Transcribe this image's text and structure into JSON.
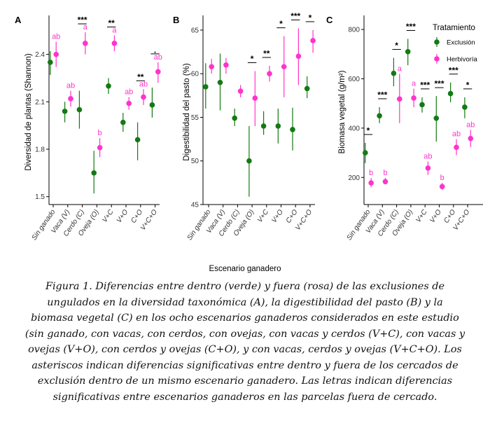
{
  "figure": {
    "shared_xlabel": "Escenario ganadero",
    "colors": {
      "exclusion": "#137a13",
      "herbivoria": "#ff33cc",
      "axis": "#000000"
    }
  },
  "chart_data": [
    {
      "type": "scatter",
      "panel_label": "A",
      "title": "",
      "ylabel": "Diversidad de plantas (Shannon)",
      "ylim": [
        1.45,
        2.62
      ],
      "yticks": [
        1.5,
        1.8,
        2.1,
        2.4
      ],
      "ytick_labels": [
        "1.5",
        "1.8",
        "2.1",
        "2.4"
      ],
      "categories": [
        "Sin ganado",
        "Vaca (V)",
        "Cerdo (C)",
        "Oveja (O)",
        "V+C",
        "V+O",
        "C+O",
        "V+C+O"
      ],
      "series": [
        {
          "name": "Exclusión",
          "color": "#137a13",
          "values": [
            2.35,
            2.04,
            2.05,
            1.65,
            2.2,
            1.97,
            1.86,
            2.08
          ],
          "err_low": [
            2.27,
            1.97,
            1.93,
            1.52,
            2.15,
            1.91,
            1.73,
            2.0
          ],
          "err_high": [
            2.42,
            2.1,
            2.17,
            1.79,
            2.25,
            2.03,
            1.97,
            2.19
          ]
        },
        {
          "name": "Herbivoría",
          "color": "#ff33cc",
          "values": [
            2.4,
            2.12,
            2.47,
            1.81,
            2.47,
            2.09,
            2.13,
            2.29
          ],
          "err_low": [
            2.32,
            2.07,
            2.4,
            1.75,
            2.42,
            2.05,
            2.08,
            2.22
          ],
          "err_high": [
            2.48,
            2.17,
            2.54,
            1.87,
            2.52,
            2.13,
            2.18,
            2.35
          ]
        }
      ],
      "letters": [
        "ab",
        "ab",
        "a",
        "b",
        "a",
        "ab",
        "ab",
        "ab"
      ],
      "significance": [
        "",
        "",
        "***",
        "",
        "**",
        "",
        "**",
        "."
      ]
    },
    {
      "type": "scatter",
      "panel_label": "B",
      "title": "",
      "ylabel": "Digestibilidad del pasto (%)",
      "ylim": [
        45,
        66.2
      ],
      "yticks": [
        45,
        50,
        55,
        60,
        65
      ],
      "ytick_labels": [
        "45",
        "50",
        "55",
        "60",
        "65"
      ],
      "categories": [
        "Sin ganado",
        "Vaca (V)",
        "Cerdo (C)",
        "Oveja (O)",
        "V+C",
        "V+O",
        "C+O",
        "V+C+O"
      ],
      "series": [
        {
          "name": "Exclusión",
          "color": "#137a13",
          "values": [
            58.5,
            59.0,
            54.9,
            50.0,
            54.0,
            54.0,
            53.6,
            58.3
          ],
          "err_low": [
            56.0,
            55.8,
            54.0,
            45.9,
            53.0,
            52.0,
            51.2,
            57.2
          ],
          "err_high": [
            61.2,
            62.3,
            56.0,
            54.0,
            55.7,
            56.0,
            56.1,
            59.7
          ]
        },
        {
          "name": "Herbivoría",
          "color": "#ff33cc",
          "values": [
            60.8,
            61.0,
            58.0,
            57.2,
            60.0,
            60.8,
            62.0,
            63.8
          ],
          "err_low": [
            60.0,
            60.0,
            57.3,
            54.0,
            59.1,
            57.3,
            58.7,
            62.4
          ],
          "err_high": [
            61.7,
            61.8,
            58.7,
            60.3,
            60.9,
            64.3,
            65.2,
            65.0
          ]
        }
      ],
      "letters": [],
      "significance": [
        "",
        "",
        "",
        "*",
        "**",
        "*",
        "***",
        "*"
      ]
    },
    {
      "type": "scatter",
      "panel_label": "C",
      "title": "",
      "ylabel": "Biomasa vegetal (g/m²)",
      "ylim": [
        90,
        840
      ],
      "yticks": [
        200,
        400,
        600,
        800
      ],
      "ytick_labels": [
        "200",
        "400",
        "600",
        "800"
      ],
      "categories": [
        "Sin ganado",
        "Vaca (V)",
        "Cerdo (C)",
        "Oveja (O)",
        "V+C",
        "V+O",
        "C+O",
        "V+C+O"
      ],
      "legend_title": "Tratamiento",
      "legend_position": "top-right",
      "series": [
        {
          "name": "Exclusión",
          "color": "#137a13",
          "values": [
            300,
            450,
            622,
            710,
            495,
            440,
            540,
            485
          ],
          "err_low": [
            258,
            420,
            570,
            655,
            463,
            345,
            505,
            440
          ],
          "err_high": [
            340,
            485,
            685,
            762,
            525,
            530,
            585,
            525
          ]
        },
        {
          "name": "Herbivoría",
          "color": "#ff33cc",
          "values": [
            178,
            183,
            518,
            522,
            238,
            163,
            322,
            358
          ],
          "err_low": [
            160,
            172,
            420,
            485,
            210,
            150,
            290,
            323
          ],
          "err_high": [
            198,
            198,
            620,
            560,
            265,
            178,
            355,
            393
          ]
        }
      ],
      "letters": [
        "b",
        "b",
        "a",
        "a",
        "ab",
        "b",
        "ab",
        "ab"
      ],
      "significance": [
        "*",
        "***",
        "*",
        "***",
        "***",
        "***",
        "***",
        "*"
      ]
    }
  ],
  "caption": {
    "lines": [
      "Figura 1. Diferencias entre dentro (verde) y fuera (rosa) de las exclusiones de",
      "ungulados en la diversidad taxonómica (A), la digestibilidad del pasto (B) y la",
      "biomasa vegetal (C) en los ocho escenarios ganaderos considerados en este estudio",
      "(sin ganado, con vacas, con cerdos, con ovejas, con vacas y cerdos (V+C), con vacas y",
      "ovejas (V+O), con cerdos y ovejas (C+O), y con vacas, cerdos y ovejas (V+C+O). Los",
      "asteriscos indican diferencias significativas entre dentro y fuera de los cercados de",
      "exclusión dentro de un mismo escenario ganadero. Las letras indican diferencias",
      "significativas entre escenarios ganaderos en las parcelas fuera de cercado."
    ]
  }
}
